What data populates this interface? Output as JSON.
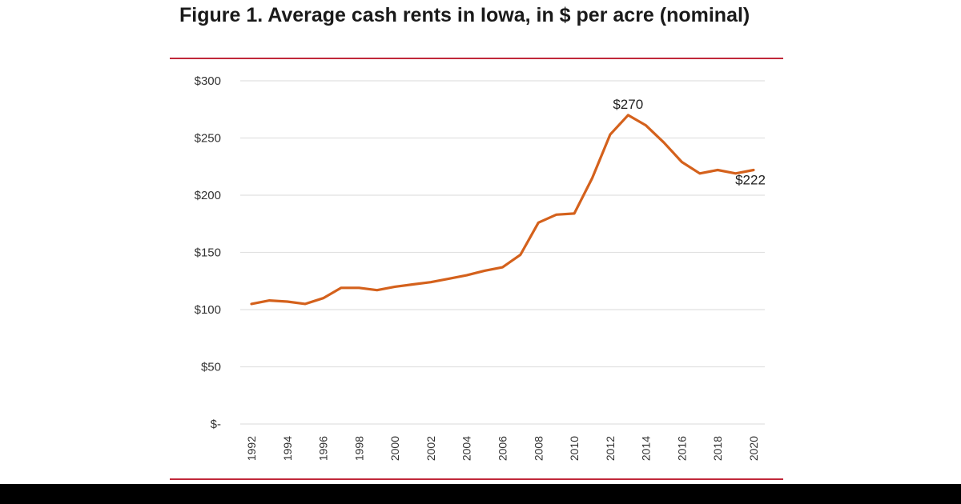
{
  "chart_data": {
    "type": "line",
    "title": "Figure 1. Average cash rents in Iowa, in $ per acre (nominal)",
    "xlabel": "",
    "ylabel": "",
    "ylim": [
      0,
      300
    ],
    "y_ticks": [
      {
        "value": 0,
        "label": "$-"
      },
      {
        "value": 50,
        "label": "$50"
      },
      {
        "value": 100,
        "label": "$100"
      },
      {
        "value": 150,
        "label": "$150"
      },
      {
        "value": 200,
        "label": "$200"
      },
      {
        "value": 250,
        "label": "$250"
      },
      {
        "value": 300,
        "label": "$300"
      }
    ],
    "x_tick_labels": [
      "1992",
      "1994",
      "1996",
      "1998",
      "2000",
      "2002",
      "2004",
      "2006",
      "2008",
      "2010",
      "2012",
      "2014",
      "2016",
      "2018",
      "2020"
    ],
    "grid": true,
    "legend": "none",
    "series": [
      {
        "color": "#d4611c",
        "x": [
          1992,
          1993,
          1994,
          1995,
          1996,
          1997,
          1998,
          1999,
          2000,
          2001,
          2002,
          2003,
          2004,
          2005,
          2006,
          2007,
          2008,
          2009,
          2010,
          2011,
          2012,
          2013,
          2014,
          2015,
          2016,
          2017,
          2018,
          2019,
          2020
        ],
        "values": [
          105,
          108,
          107,
          105,
          110,
          119,
          119,
          117,
          120,
          122,
          124,
          127,
          130,
          134,
          137,
          148,
          176,
          183,
          184,
          215,
          253,
          270,
          261,
          246,
          229,
          219,
          222,
          219,
          222
        ]
      }
    ],
    "annotations": [
      {
        "x": 2013,
        "y": 270,
        "text": "$270"
      },
      {
        "x": 2020,
        "y": 222,
        "text": "$222"
      }
    ]
  }
}
